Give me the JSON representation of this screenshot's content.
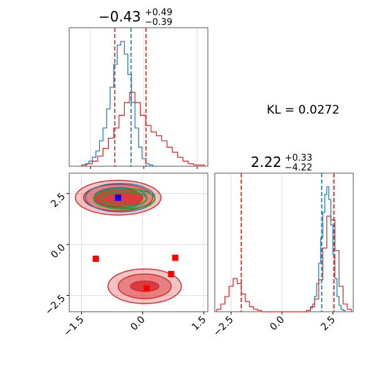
{
  "chart_data": [
    {
      "panel": "top-left marginal histogram",
      "type": "histogram",
      "title": {
        "value": "−0.43",
        "sup": "+0.49",
        "sub": "−0.39"
      },
      "x_range": [
        -2.1,
        1.8
      ],
      "series": [
        {
          "color": "#1f77b4",
          "bin_edges": [
            -1.75,
            -1.65,
            -1.55,
            -1.45,
            -1.35,
            -1.25,
            -1.15,
            -1.05,
            -0.95,
            -0.85,
            -0.75,
            -0.65,
            -0.55,
            -0.45,
            -0.35,
            -0.25,
            -0.15,
            -0.05,
            0.05,
            0.15,
            0.25,
            0.35
          ],
          "heights": [
            0.01,
            0.02,
            0.04,
            0.07,
            0.12,
            0.2,
            0.3,
            0.45,
            0.62,
            0.8,
            0.95,
            0.98,
            0.88,
            0.72,
            0.5,
            0.3,
            0.15,
            0.06,
            0.02,
            0.01,
            0.0
          ]
        },
        {
          "color": "#d62728",
          "bin_edges": [
            -1.75,
            -1.6,
            -1.45,
            -1.3,
            -1.15,
            -1.0,
            -0.85,
            -0.7,
            -0.55,
            -0.4,
            -0.25,
            -0.1,
            0.05,
            0.2,
            0.35,
            0.5,
            0.65,
            0.8,
            0.95,
            1.1,
            1.25,
            1.4,
            1.55,
            1.7
          ],
          "heights": [
            0.01,
            0.02,
            0.04,
            0.08,
            0.14,
            0.22,
            0.3,
            0.4,
            0.5,
            0.58,
            0.5,
            0.4,
            0.32,
            0.27,
            0.24,
            0.2,
            0.15,
            0.11,
            0.07,
            0.04,
            0.02,
            0.01,
            0.01
          ]
        }
      ],
      "vlines": [
        {
          "x": -0.82,
          "color": "#d62728",
          "style": "dashed"
        },
        {
          "x": -0.36,
          "color": "#1f77b4",
          "style": "dashed"
        },
        {
          "x": 0.06,
          "color": "#d62728",
          "style": "dashed"
        }
      ]
    },
    {
      "panel": "bottom-left 2D contour",
      "type": "contour-scatter",
      "x_range": [
        -1.8,
        1.6
      ],
      "y_range": [
        -3.3,
        3.5
      ],
      "x_ticks": [
        -1.5,
        0.0,
        1.5
      ],
      "x_tick_labels": [
        "−1.5",
        "0.0",
        "1.5"
      ],
      "y_ticks": [
        -2.5,
        0.0,
        2.5
      ],
      "y_tick_labels": [
        "−2.5",
        "0.0",
        "2.5"
      ],
      "grid": true,
      "blue_contours": [
        {
          "cx": -0.55,
          "cy": 2.3,
          "rx": 0.85,
          "ry": 0.7
        },
        {
          "cx": -0.55,
          "cy": 2.3,
          "rx": 0.65,
          "ry": 0.5
        }
      ],
      "green_contours": [
        {
          "cx": -0.45,
          "cy": 2.25,
          "rx": 0.75,
          "ry": 0.5
        },
        {
          "cx": -0.45,
          "cy": 2.25,
          "rx": 0.55,
          "ry": 0.35
        }
      ],
      "red_contours": [
        {
          "cx": -0.6,
          "cy": 2.3,
          "rx": 1.05,
          "ry": 0.85,
          "level": "outer"
        },
        {
          "cx": -0.6,
          "cy": 2.3,
          "rx": 0.85,
          "ry": 0.65,
          "level": "mid"
        },
        {
          "cx": -0.6,
          "cy": 2.3,
          "rx": 0.6,
          "ry": 0.45,
          "level": "inner"
        },
        {
          "cx": 0.05,
          "cy": -2.05,
          "rx": 0.9,
          "ry": 0.85,
          "level": "outer"
        },
        {
          "cx": 0.05,
          "cy": -2.05,
          "rx": 0.65,
          "ry": 0.6,
          "level": "mid"
        },
        {
          "cx": 0.05,
          "cy": -2.05,
          "rx": 0.35,
          "ry": 0.25,
          "level": "inner"
        }
      ],
      "markers": [
        {
          "x": -0.6,
          "y": 2.3,
          "color": "#0000ff"
        },
        {
          "x": -1.15,
          "y": -0.7,
          "color": "#ff0000"
        },
        {
          "x": 0.8,
          "y": -0.65,
          "color": "#ff0000"
        },
        {
          "x": 0.7,
          "y": -1.45,
          "color": "#ff0000"
        },
        {
          "x": 0.1,
          "y": -2.15,
          "color": "#ff0000"
        }
      ]
    },
    {
      "panel": "bottom-right marginal histogram",
      "type": "histogram",
      "title": {
        "value": "2.22",
        "sup": "+0.33",
        "sub": "−4.22"
      },
      "x_range": [
        -3.3,
        3.5
      ],
      "x_ticks": [
        -2.5,
        0.0,
        2.5
      ],
      "x_tick_labels": [
        "−2.5",
        "0.0",
        "2.5"
      ],
      "grid": true,
      "series": [
        {
          "color": "#1f77b4",
          "bin_edges": [
            1.3,
            1.4,
            1.5,
            1.6,
            1.7,
            1.8,
            1.9,
            2.0,
            2.1,
            2.2,
            2.3,
            2.4,
            2.5,
            2.6,
            2.7,
            2.8,
            2.9,
            3.0,
            3.1
          ],
          "heights": [
            0.01,
            0.03,
            0.06,
            0.12,
            0.22,
            0.38,
            0.58,
            0.78,
            0.92,
            0.98,
            0.88,
            0.68,
            0.45,
            0.26,
            0.12,
            0.05,
            0.02,
            0.01
          ]
        },
        {
          "color": "#d62728",
          "bin_edges": [
            -3.2,
            -3.0,
            -2.8,
            -2.6,
            -2.4,
            -2.2,
            -2.0,
            -1.8,
            -1.6,
            -1.4,
            -1.2,
            -1.0,
            1.2,
            1.4,
            1.6,
            1.8,
            2.0,
            2.2,
            2.4,
            2.6,
            2.8,
            3.0,
            3.2,
            3.4
          ],
          "heights": [
            0.02,
            0.06,
            0.12,
            0.2,
            0.26,
            0.22,
            0.14,
            0.08,
            0.04,
            0.02,
            0.01,
            0.0,
            0.01,
            0.04,
            0.1,
            0.25,
            0.5,
            0.75,
            0.72,
            0.48,
            0.2,
            0.06,
            0.02
          ]
        }
      ],
      "vlines": [
        {
          "x": -2.0,
          "color": "#d62728",
          "style": "dashed"
        },
        {
          "x": 1.95,
          "color": "#1f77b4",
          "style": "dashed"
        },
        {
          "x": 2.55,
          "color": "#d62728",
          "style": "dashed"
        }
      ]
    }
  ],
  "annotation": {
    "text": "KL = 0.0272"
  }
}
